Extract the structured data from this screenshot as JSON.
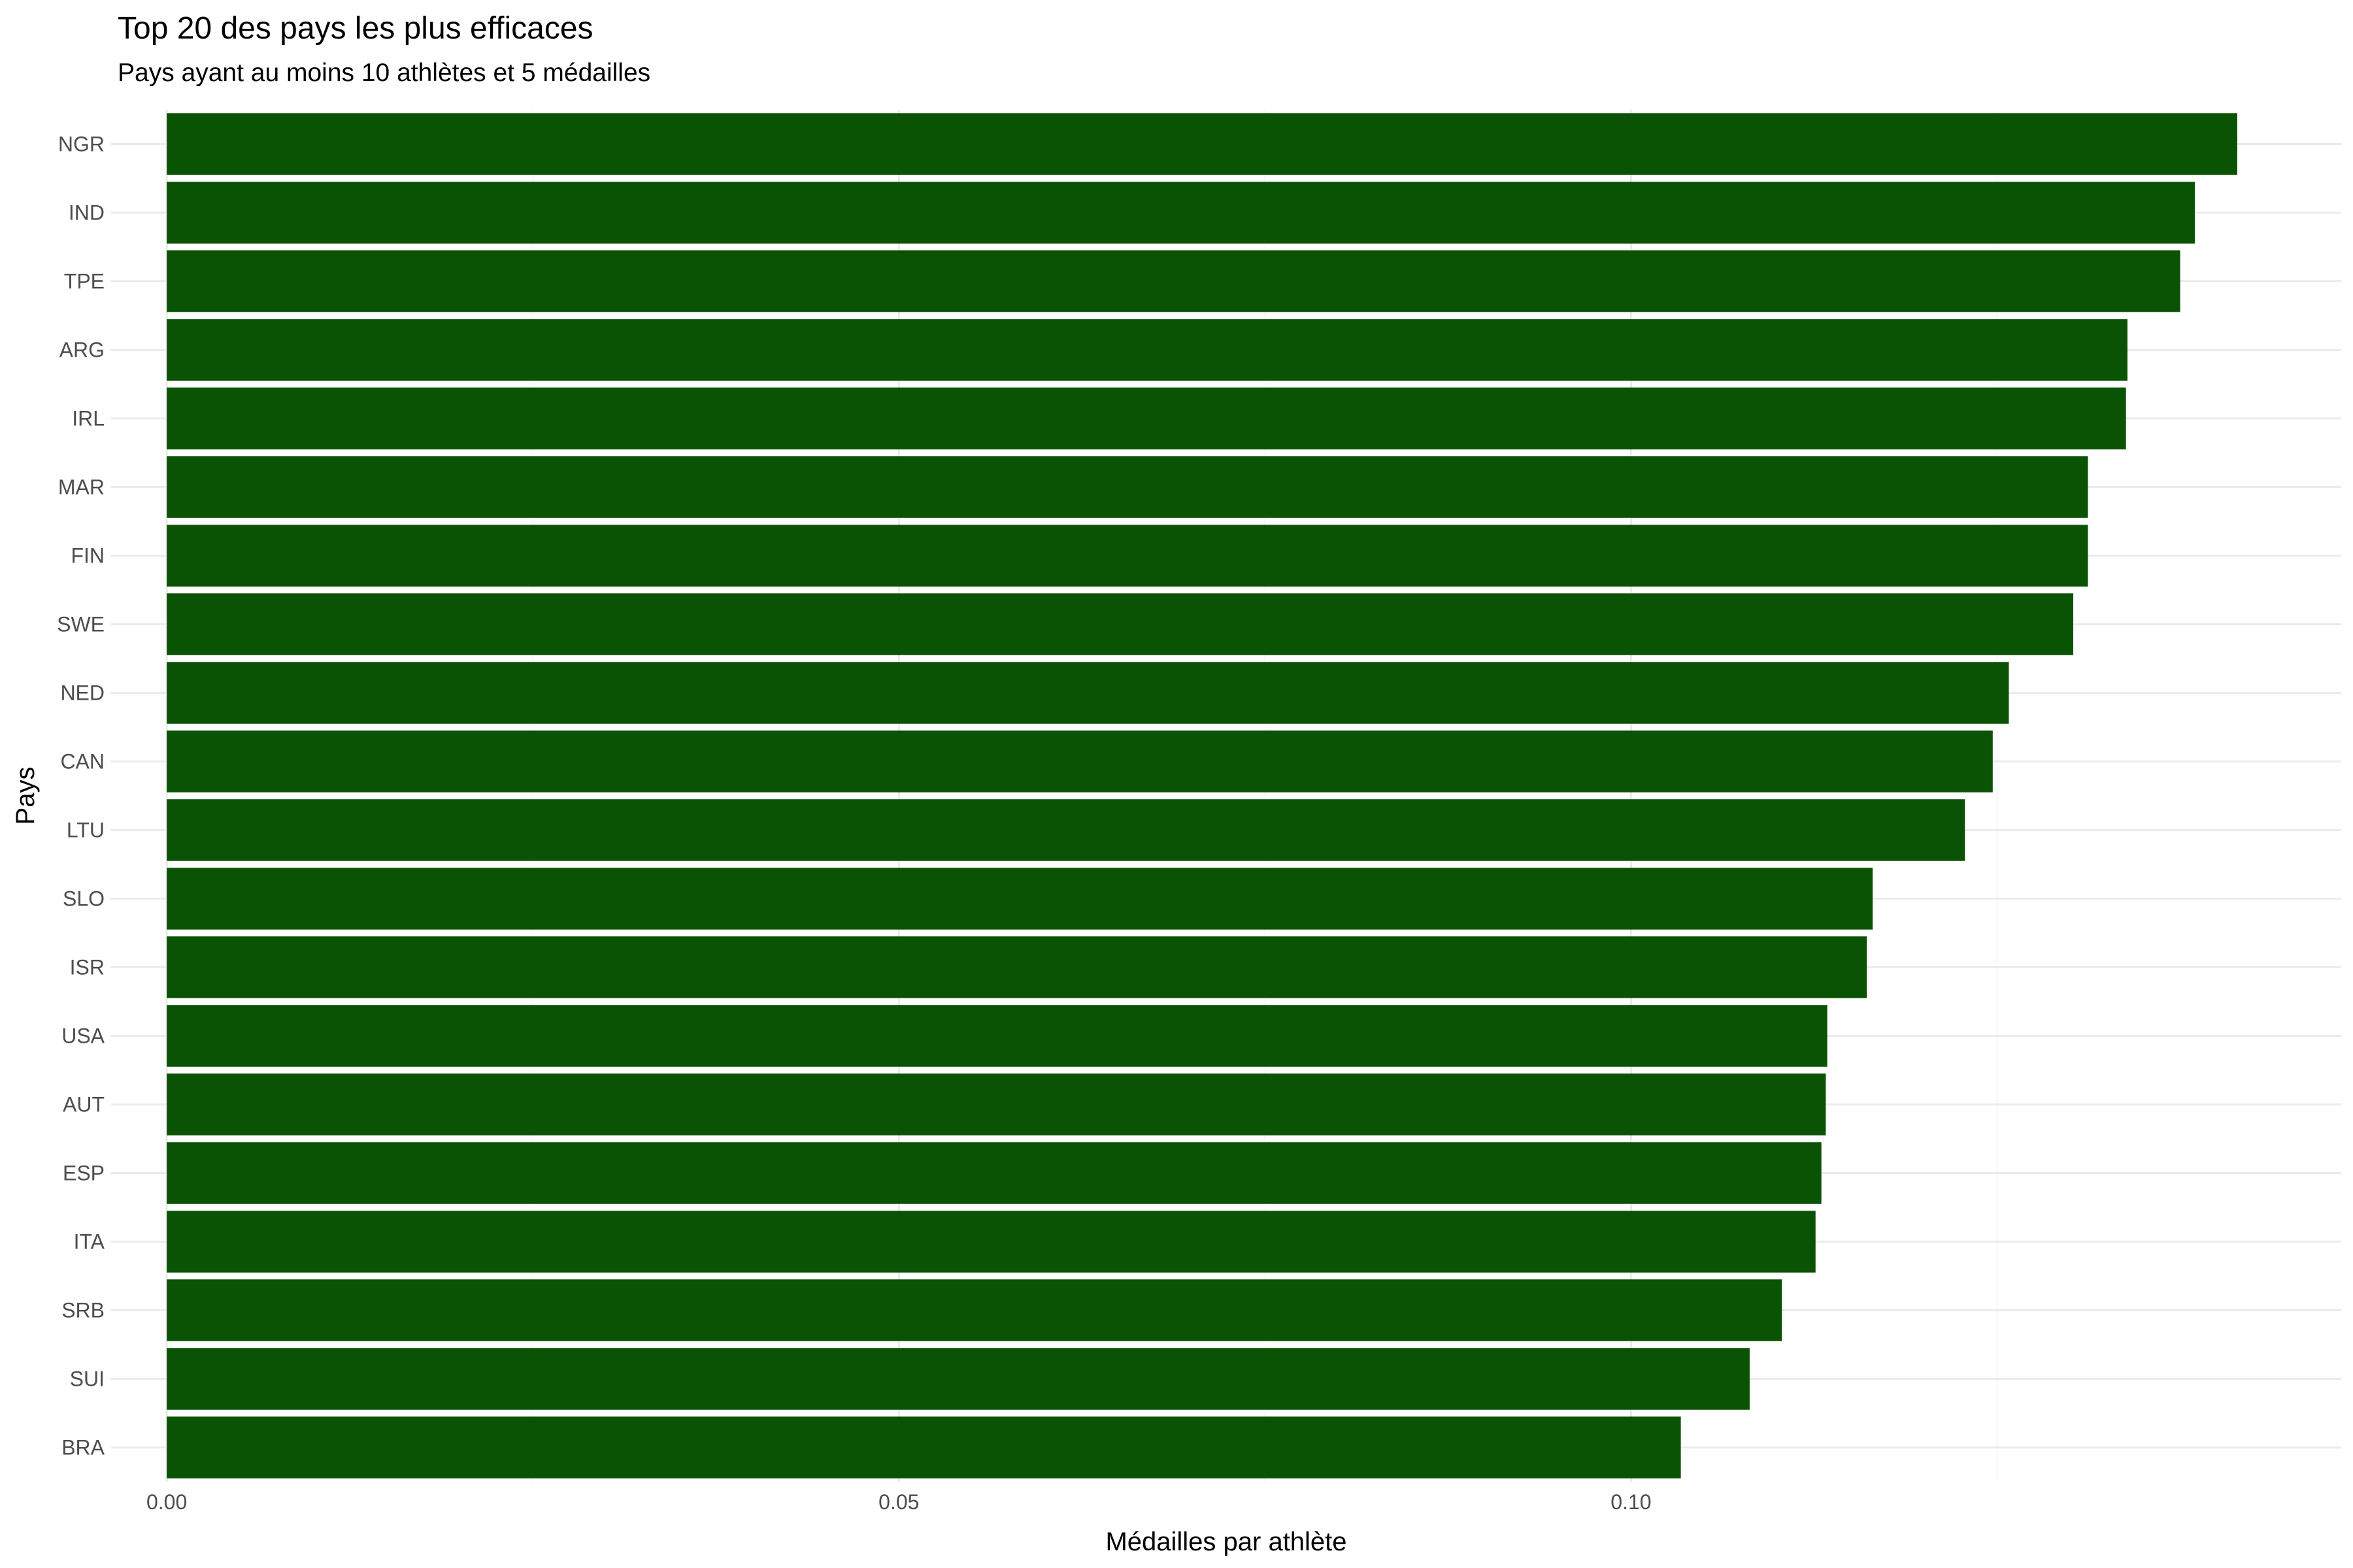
{
  "chart_data": {
    "type": "bar",
    "orientation": "horizontal",
    "title": "Top 20 des pays les plus efficaces",
    "subtitle": "Pays ayant au moins 10 athlètes et 5 médailles",
    "xlabel": "Médailles par athlète",
    "ylabel": "Pays",
    "xlim": [
      -0.0038,
      0.1485
    ],
    "xticks": [
      0.0,
      0.05,
      0.1
    ],
    "xtick_labels": [
      "0.00",
      "0.05",
      "0.10"
    ],
    "grid": true,
    "bar_color": "#0b5304",
    "categories": [
      "NGR",
      "IND",
      "TPE",
      "ARG",
      "IRL",
      "MAR",
      "FIN",
      "SWE",
      "NED",
      "CAN",
      "LTU",
      "SLO",
      "ISR",
      "USA",
      "AUT",
      "ESP",
      "ITA",
      "SRB",
      "SUI",
      "BRA"
    ],
    "values": [
      0.1414,
      0.1385,
      0.1375,
      0.1339,
      0.1338,
      0.1312,
      0.1312,
      0.1302,
      0.1258,
      0.1247,
      0.1228,
      0.1165,
      0.1161,
      0.1134,
      0.1133,
      0.113,
      0.1126,
      0.1103,
      0.1081,
      0.1034
    ]
  }
}
